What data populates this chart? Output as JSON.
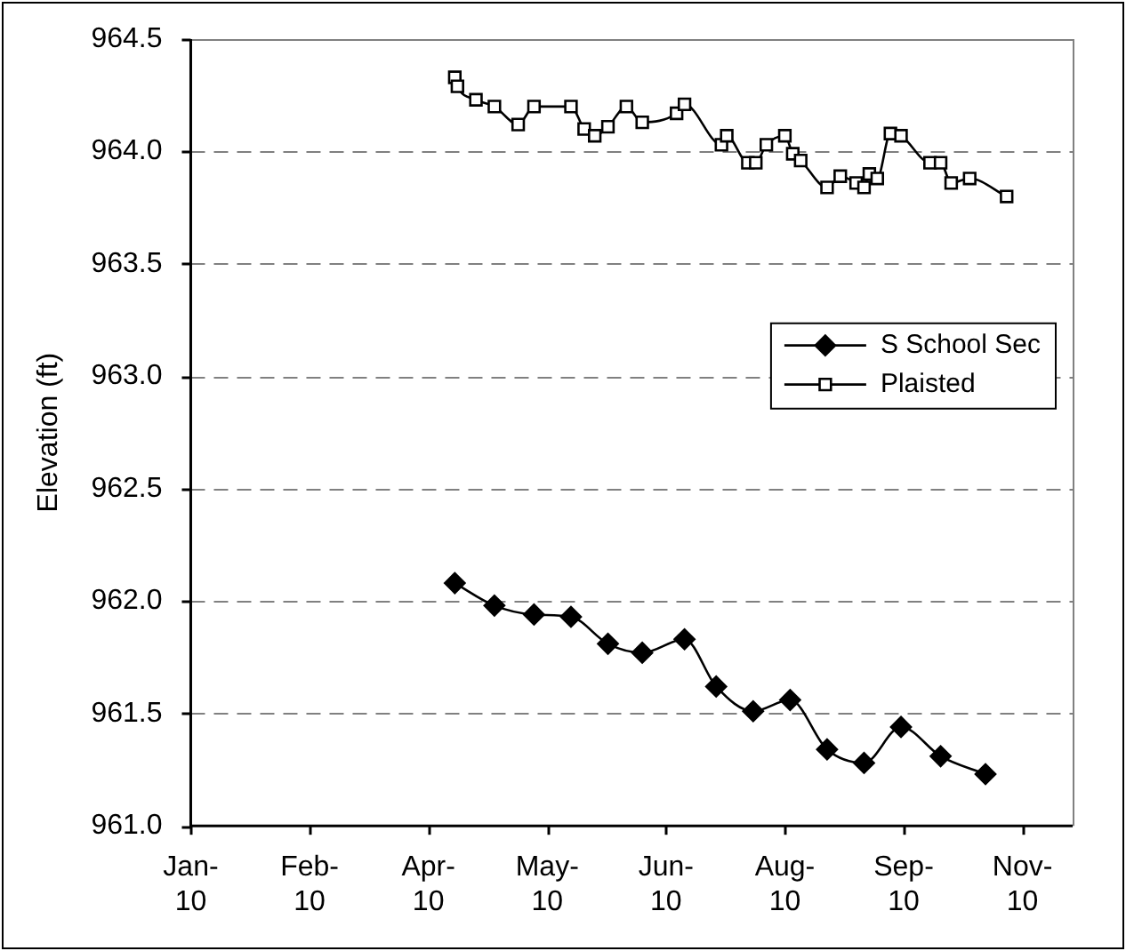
{
  "chart_data": {
    "type": "line",
    "ylabel": "Elevation (ft)",
    "xlim": [
      "2010-01-01",
      "2010-12-01"
    ],
    "xticks": [
      {
        "value": "2010-01-01",
        "label": "Jan-10"
      },
      {
        "value": "2010-02-15",
        "label": "Feb-10"
      },
      {
        "value": "2010-04-01",
        "label": "Apr-10"
      },
      {
        "value": "2010-05-16",
        "label": "May-10"
      },
      {
        "value": "2010-06-30",
        "label": "Jun-10"
      },
      {
        "value": "2010-08-14",
        "label": "Aug-10"
      },
      {
        "value": "2010-09-28",
        "label": "Sep-10"
      },
      {
        "value": "2010-11-12",
        "label": "Nov-10"
      }
    ],
    "ylim": [
      961,
      964.5
    ],
    "yticks": [
      {
        "value": 961,
        "label": "961.0"
      },
      961.5,
      {
        "value": 962,
        "label": "962.0"
      },
      962.5,
      {
        "value": 963,
        "label": "963.0"
      },
      963.5,
      {
        "value": 964,
        "label": "964.0"
      },
      964.5
    ],
    "grid": "y",
    "legend": "right",
    "line_style": "solid",
    "series": [
      {
        "name": "S School Sec",
        "color": "#000000",
        "marker": "diamond",
        "x": [
          "2010-04-11",
          "2010-04-26",
          "2010-05-11",
          "2010-05-25",
          "2010-06-08",
          "2010-06-21",
          "2010-07-07",
          "2010-07-19",
          "2010-08-02",
          "2010-08-16",
          "2010-08-30",
          "2010-09-13",
          "2010-09-27",
          "2010-10-12",
          "2010-10-29"
        ],
        "values": [
          962.08,
          961.98,
          961.94,
          961.93,
          961.81,
          961.77,
          961.83,
          961.62,
          961.51,
          961.56,
          961.34,
          961.28,
          961.44,
          961.31,
          961.23
        ]
      },
      {
        "name": "Plaisted",
        "color": "#000000",
        "marker": "square",
        "x": [
          "2010-04-11",
          "2010-04-12",
          "2010-04-19",
          "2010-04-26",
          "2010-05-05",
          "2010-05-11",
          "2010-05-25",
          "2010-05-30",
          "2010-06-03",
          "2010-06-08",
          "2010-06-15",
          "2010-06-21",
          "2010-07-04",
          "2010-07-07",
          "2010-07-21",
          "2010-07-23",
          "2010-07-31",
          "2010-08-03",
          "2010-08-07",
          "2010-08-14",
          "2010-08-17",
          "2010-08-20",
          "2010-08-30",
          "2010-09-04",
          "2010-09-10",
          "2010-09-13",
          "2010-09-15",
          "2010-09-18",
          "2010-09-23",
          "2010-09-27",
          "2010-10-08",
          "2010-10-12",
          "2010-10-16",
          "2010-10-23",
          "2010-11-06"
        ],
        "values": [
          964.33,
          964.29,
          964.23,
          964.2,
          964.12,
          964.2,
          964.2,
          964.1,
          964.07,
          964.11,
          964.2,
          964.13,
          964.17,
          964.21,
          964.03,
          964.07,
          963.95,
          963.95,
          964.03,
          964.07,
          963.99,
          963.96,
          963.84,
          963.89,
          963.86,
          963.84,
          963.9,
          963.88,
          964.08,
          964.07,
          963.95,
          963.95,
          963.86,
          963.88,
          963.8
        ]
      }
    ]
  }
}
